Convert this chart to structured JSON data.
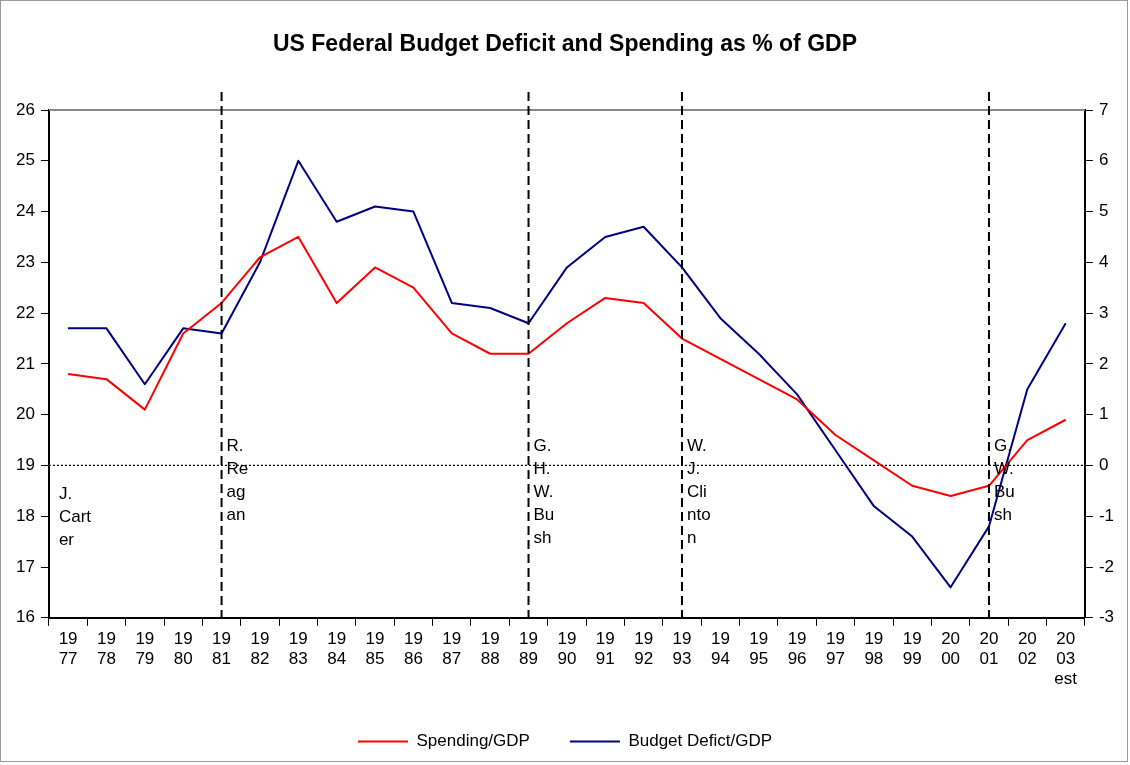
{
  "chart_data": {
    "type": "line",
    "title": "US Federal Budget Deficit and Spending as % of GDP",
    "categories": [
      "1977",
      "1978",
      "1979",
      "1980",
      "1981",
      "1982",
      "1983",
      "1984",
      "1985",
      "1986",
      "1987",
      "1988",
      "1989",
      "1990",
      "1991",
      "1992",
      "1993",
      "1994",
      "1995",
      "1996",
      "1997",
      "1998",
      "1999",
      "2000",
      "2001",
      "2002",
      "2003 est"
    ],
    "series": [
      {
        "name": "Spending/GDP",
        "color": "#ff0000",
        "values": [
          20.8,
          20.7,
          20.1,
          21.6,
          22.2,
          23.1,
          23.5,
          22.2,
          22.9,
          22.5,
          21.6,
          21.2,
          21.2,
          21.8,
          22.3,
          22.2,
          21.5,
          21.1,
          20.7,
          20.3,
          19.6,
          19.1,
          18.6,
          18.4,
          18.6,
          19.5,
          19.9
        ]
      },
      {
        "name": "Budget Defict/GDP",
        "color": "#000080",
        "axis": "y2",
        "values": [
          2.7,
          2.7,
          1.6,
          2.7,
          2.6,
          4.0,
          6.0,
          4.8,
          5.1,
          5.0,
          3.2,
          3.1,
          2.8,
          3.9,
          4.5,
          4.7,
          3.9,
          2.9,
          2.2,
          1.4,
          0.3,
          -0.8,
          -1.4,
          -2.4,
          -1.2,
          1.5,
          2.8
        ]
      }
    ],
    "ylim": [
      16,
      26
    ],
    "yticks": [
      16,
      17,
      18,
      19,
      20,
      21,
      22,
      23,
      24,
      25,
      26
    ],
    "y2lim": [
      -3,
      7
    ],
    "y2ticks": [
      -3,
      -2,
      -1,
      0,
      1,
      2,
      3,
      4,
      5,
      6,
      7
    ],
    "ref_lines": [
      {
        "axis": "x",
        "value": "1981",
        "label": "R. Reagan",
        "line_style": "dashed"
      },
      {
        "axis": "x",
        "value": "1989",
        "label": "G. H. W. Bush",
        "line_style": "dashed"
      },
      {
        "axis": "x",
        "value": "1993",
        "label": "W. J. Clinton",
        "line_style": "dashed"
      },
      {
        "axis": "x",
        "value": "2001",
        "label": "G. W. Bush",
        "line_style": "dashed"
      },
      {
        "axis": "y2",
        "value": 0,
        "line_style": "dotted"
      }
    ],
    "annotations": [
      "J. Carter"
    ],
    "legend": "bottom",
    "marker": "none",
    "line_style": "solid"
  }
}
